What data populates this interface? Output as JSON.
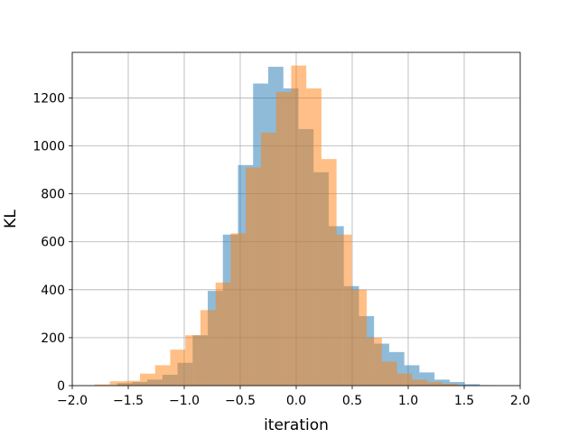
{
  "colors": {
    "series_1": "#1f77b4",
    "series_2": "#ff7f0e",
    "grid": "#b0b0b0",
    "axes": "#000000"
  },
  "chart_data": {
    "type": "bar",
    "subtype": "overlapping-histogram",
    "title": "",
    "xlabel": "iteration",
    "ylabel": "KL",
    "xlim": [
      -2.0,
      2.0
    ],
    "ylim": [
      0,
      1390
    ],
    "xticks": [
      "−2.0",
      "−1.5",
      "−1.0",
      "−0.5",
      "0.0",
      "0.5",
      "1.0",
      "1.5",
      "2.0"
    ],
    "xtick_values": [
      -2.0,
      -1.5,
      -1.0,
      -0.5,
      0.0,
      0.5,
      1.0,
      1.5,
      2.0
    ],
    "yticks": [
      "0",
      "200",
      "400",
      "600",
      "800",
      "1000",
      "1200"
    ],
    "ytick_values": [
      0,
      200,
      400,
      600,
      800,
      1000,
      1200
    ],
    "grid": true,
    "legend": "none",
    "bar_alpha": 0.5,
    "series": [
      {
        "color": "#1f77b4",
        "bin_edges": [
          -1.6,
          -1.465,
          -1.33,
          -1.195,
          -1.06,
          -0.925,
          -0.79,
          -0.655,
          -0.52,
          -0.385,
          -0.25,
          -0.115,
          0.02,
          0.155,
          0.29,
          0.425,
          0.56,
          0.695,
          0.83,
          0.965,
          1.1,
          1.235,
          1.37,
          1.505,
          1.64,
          1.775
        ],
        "counts": [
          10,
          15,
          25,
          45,
          95,
          210,
          395,
          630,
          920,
          1260,
          1330,
          1240,
          1070,
          890,
          665,
          415,
          290,
          175,
          140,
          85,
          55,
          25,
          15,
          6,
          2
        ]
      },
      {
        "color": "#ff7f0e",
        "bin_edges": [
          -1.8,
          -1.665,
          -1.53,
          -1.395,
          -1.26,
          -1.125,
          -0.99,
          -0.855,
          -0.72,
          -0.585,
          -0.45,
          -0.315,
          -0.18,
          -0.045,
          0.09,
          0.225,
          0.36,
          0.495,
          0.63,
          0.765,
          0.9,
          1.035,
          1.17,
          1.305,
          1.44
        ],
        "counts": [
          5,
          18,
          20,
          50,
          85,
          150,
          210,
          315,
          430,
          635,
          910,
          1055,
          1225,
          1335,
          1240,
          945,
          630,
          400,
          200,
          100,
          50,
          25,
          15,
          8
        ]
      }
    ]
  }
}
